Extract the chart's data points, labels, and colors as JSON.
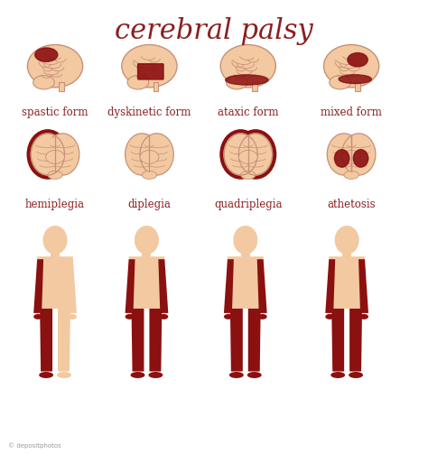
{
  "title": "cerebral palsy",
  "title_color": "#8B2020",
  "title_fontsize": 22,
  "background_color": "#FFFFFF",
  "skin_color": "#F2C9A0",
  "highlight_color": "#8B1010",
  "brain_line_color": "#C8907A",
  "row1_labels": [
    "spastic form",
    "dyskinetic form",
    "ataxic form",
    "mixed form"
  ],
  "row2_labels": [
    "hemiplegia",
    "diplegia",
    "quadriplegia",
    "athetosis"
  ],
  "label_color": "#8B2020",
  "label_fontsize": 8.5,
  "fig_width": 4.74,
  "fig_height": 5.03
}
